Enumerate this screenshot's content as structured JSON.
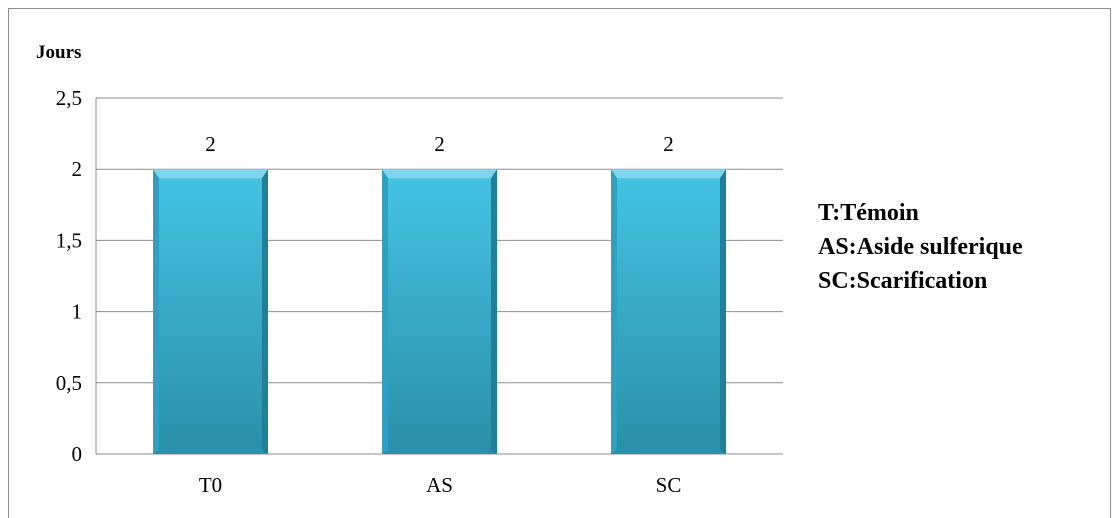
{
  "chart_data": {
    "type": "bar",
    "categories": [
      "T0",
      "AS",
      "SC"
    ],
    "values": [
      2,
      2,
      2
    ],
    "data_labels": [
      "2",
      "2",
      "2"
    ],
    "ylabel": "Jours",
    "xlabel": "",
    "ylim": [
      0,
      2.5
    ],
    "yticks": [
      "0",
      "0,5",
      "1",
      "1,5",
      "2",
      "2,5"
    ],
    "grid": true,
    "bar_color": "#31B6D9",
    "legend": "right",
    "notes": [
      "T:Témoin",
      "AS:Aside sulferique",
      "SC:Scarification"
    ]
  }
}
